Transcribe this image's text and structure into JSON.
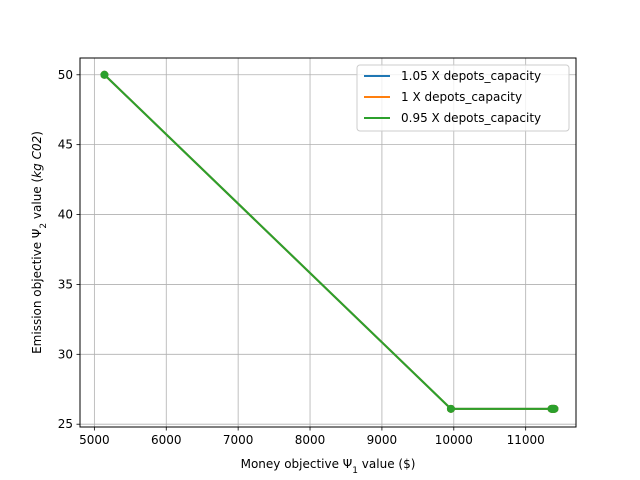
{
  "chart_data": {
    "type": "line",
    "title": "",
    "xlabel": {
      "main": "Money objective Ψ",
      "sub": "1",
      "tail": " value ($)"
    },
    "ylabel": {
      "main": "Emission objective Ψ",
      "sub": "2",
      "tail": " value (",
      "italic": "kg C02",
      "close": ")"
    },
    "xlim": [
      4800,
      11700
    ],
    "ylim": [
      24.8,
      51.2
    ],
    "xticks": [
      5000,
      6000,
      7000,
      8000,
      9000,
      10000,
      11000
    ],
    "yticks": [
      25,
      30,
      35,
      40,
      45,
      50
    ],
    "grid": true,
    "legend_position": "top-right",
    "series": [
      {
        "name": "1.05 X depots_capacity",
        "color": "#1f77b4",
        "x": [
          5140,
          9960,
          11360,
          11370,
          11380,
          11390,
          11400
        ],
        "y": [
          50.0,
          26.1,
          26.1,
          26.1,
          26.1,
          26.1,
          26.1
        ]
      },
      {
        "name": "1 X depots_capacity",
        "color": "#ff7f0e",
        "x": [
          5140,
          9960,
          11360,
          11370,
          11380,
          11390,
          11400
        ],
        "y": [
          50.0,
          26.1,
          26.1,
          26.1,
          26.1,
          26.1,
          26.1
        ]
      },
      {
        "name": "0.95 X depots_capacity",
        "color": "#2ca02c",
        "x": [
          5140,
          9960,
          11360,
          11370,
          11380,
          11390,
          11400
        ],
        "y": [
          50.0,
          26.1,
          26.1,
          26.1,
          26.1,
          26.1,
          26.1
        ]
      }
    ]
  }
}
